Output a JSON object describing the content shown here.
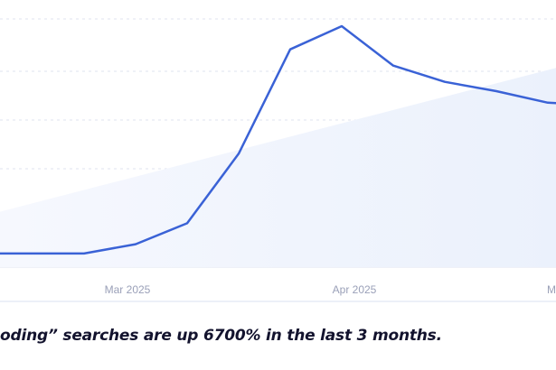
{
  "chart_data": {
    "type": "line",
    "x_tick_labels": [
      "Mar 2025",
      "Apr 2025",
      "M"
    ],
    "series": [
      {
        "values": [
          2,
          2,
          2,
          6,
          15,
          45,
          90,
          100,
          83,
          76,
          72,
          67,
          66,
          68
        ]
      }
    ],
    "trend": {
      "start": 20,
      "end": 82
    },
    "ylim": [
      0,
      100
    ],
    "grid": true,
    "legend": "none",
    "colors": {
      "line": "#3a62d6",
      "trend_fill": "#ebf1fc",
      "grid": "#dfe3ef",
      "tick": "#9aa0b8",
      "frame": "#e6ecf6"
    }
  },
  "caption": {
    "text": "oding” searches are up 6700% in the last 3 months."
  }
}
